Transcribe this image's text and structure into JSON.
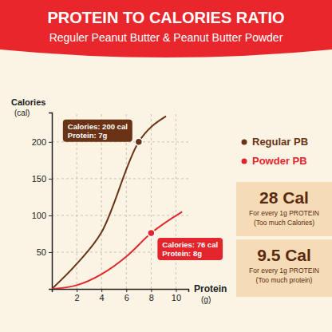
{
  "chart_data": {
    "type": "line",
    "title": "PROTEIN TO CALORIES RATIO",
    "subtitle": "Reguler Peanut Butter & Peanut Butter Powder",
    "x_label": "Protein",
    "x_label_unit": "(g)",
    "y_label": "Calories",
    "y_label_unit": "(cal)",
    "xlim": [
      0,
      11
    ],
    "xticks": [
      2,
      4,
      6,
      8,
      10
    ],
    "ylim": [
      0,
      240
    ],
    "yticks": [
      50,
      100,
      150,
      200
    ],
    "grid": true,
    "legend": "right",
    "series": [
      {
        "name": "Regular PB",
        "color": "#6b3316",
        "x": [
          0,
          2,
          4,
          7,
          9.2
        ],
        "values": [
          0,
          34,
          77,
          200,
          235
        ]
      },
      {
        "name": "Powder PB",
        "color": "#e3262d",
        "x": [
          0,
          2,
          4,
          6,
          8,
          10.5
        ],
        "values": [
          0,
          5,
          20,
          44,
          76,
          105
        ]
      }
    ],
    "annotations": [
      {
        "series": 0,
        "x": 7,
        "y": 200,
        "lines": [
          "Calories: 200 cal",
          "Protein: 7g"
        ]
      },
      {
        "series": 1,
        "x": 8,
        "y": 76,
        "lines": [
          "Calories: 76 cal",
          "Protein: 8g"
        ]
      }
    ],
    "callouts": [
      {
        "label": "28 Cal",
        "text": "For every 1g PROTEIN",
        "note": "(Too much Calories)"
      },
      {
        "label": "9.5 Cal",
        "text": "For every 1g PROTEIN",
        "note": "(Too much protein)"
      }
    ]
  }
}
